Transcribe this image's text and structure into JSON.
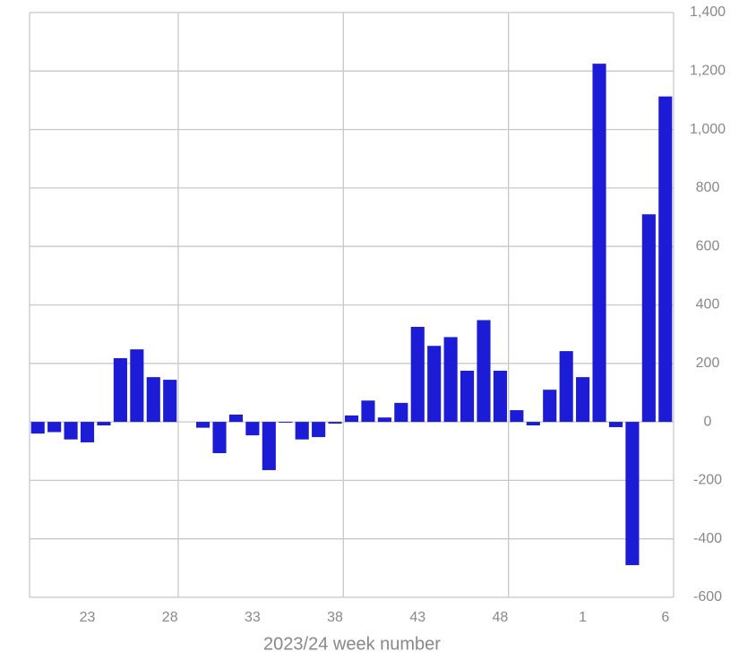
{
  "chart_data": {
    "type": "bar",
    "x_label": "2023/24 week number",
    "categories": [
      null,
      null,
      null,
      "23",
      null,
      null,
      null,
      null,
      "28",
      null,
      null,
      null,
      null,
      "33",
      null,
      null,
      null,
      null,
      "38",
      null,
      null,
      null,
      null,
      "43",
      null,
      null,
      null,
      null,
      "48",
      null,
      null,
      null,
      null,
      "1",
      null,
      null,
      null,
      null,
      "6"
    ],
    "values": [
      -40,
      -35,
      -60,
      -70,
      -12,
      218,
      248,
      153,
      144,
      0,
      -20,
      -107,
      25,
      -46,
      -165,
      -3,
      -60,
      -52,
      -6,
      22,
      73,
      15,
      65,
      325,
      260,
      290,
      175,
      348,
      175,
      40,
      -12,
      110,
      242,
      153,
      1225,
      -18,
      -490,
      710,
      1113
    ],
    "color": "#1c1cd6",
    "ylim": [
      -600,
      1400
    ],
    "yticks": [
      -600,
      -400,
      -200,
      0,
      200,
      400,
      600,
      800,
      {
        "value": 1000,
        "label": "1,000"
      },
      {
        "value": 1200,
        "label": "1,200"
      },
      {
        "value": 1400,
        "label": "1,400"
      }
    ],
    "grid": true
  }
}
